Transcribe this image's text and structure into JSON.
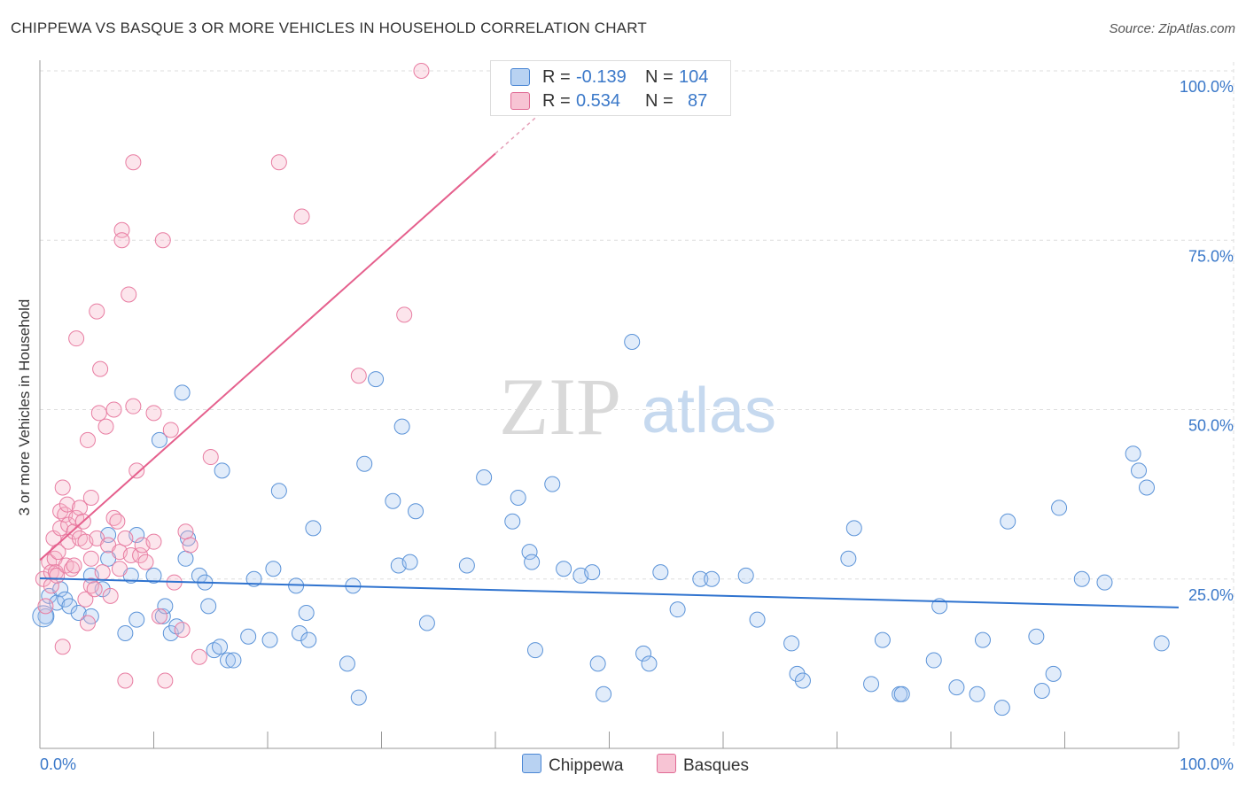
{
  "title": "CHIPPEWA VS BASQUE 3 OR MORE VEHICLES IN HOUSEHOLD CORRELATION CHART",
  "source": "Source: ZipAtlas.com",
  "watermark": {
    "zip": "ZIP",
    "atlas": "atlas"
  },
  "legend_stats": [
    {
      "r_label": "R =",
      "r_value": "-0.139",
      "n_label": "N =",
      "n_value": "104",
      "color": "#4a86d4",
      "fill": "#b8d2f2"
    },
    {
      "r_label": "R =",
      "r_value": "0.534",
      "n_label": "N =",
      "n_value": "87",
      "color": "#e06a94",
      "fill": "#f7bfd0"
    }
  ],
  "bottom_legend": [
    {
      "label": "Chippewa",
      "fill": "#b8d2f2",
      "stroke": "#4a86d4"
    },
    {
      "label": "Basques",
      "fill": "#f7c4d4",
      "stroke": "#e06a94"
    }
  ],
  "chart_data": {
    "type": "scatter",
    "title": "CHIPPEWA VS BASQUE 3 OR MORE VEHICLES IN HOUSEHOLD CORRELATION CHART",
    "ylabel": "3 or more Vehicles in Household",
    "xlabel": "",
    "xlim": [
      0,
      100
    ],
    "ylim": [
      0,
      100
    ],
    "x_tick_labels": [
      "0.0%",
      "100.0%"
    ],
    "y_tick_labels": [
      "25.0%",
      "50.0%",
      "75.0%",
      "100.0%"
    ],
    "grid": true,
    "legend_position": "top-center",
    "series": [
      {
        "name": "Chippewa",
        "color": "#4a86d4",
        "trend": {
          "x": [
            0,
            100
          ],
          "y": [
            25.1,
            20.8
          ]
        },
        "points": [
          [
            0.5,
            19.5
          ],
          [
            0.8,
            22.5
          ],
          [
            1.5,
            21.5
          ],
          [
            1.8,
            23.5
          ],
          [
            2.2,
            22.0
          ],
          [
            2.6,
            21.0
          ],
          [
            3.4,
            20.0
          ],
          [
            4.5,
            25.5
          ],
          [
            4.5,
            19.5
          ],
          [
            5.5,
            23.5
          ],
          [
            6.0,
            31.5
          ],
          [
            6.0,
            28.0
          ],
          [
            7.5,
            17.0
          ],
          [
            8.0,
            25.5
          ],
          [
            8.5,
            31.5
          ],
          [
            8.5,
            19.0
          ],
          [
            10.0,
            25.5
          ],
          [
            10.5,
            45.5
          ],
          [
            10.8,
            19.5
          ],
          [
            11.0,
            21.0
          ],
          [
            11.5,
            17.0
          ],
          [
            12.0,
            18.0
          ],
          [
            12.5,
            52.5
          ],
          [
            12.8,
            28.0
          ],
          [
            13.0,
            31.0
          ],
          [
            14.0,
            25.5
          ],
          [
            14.5,
            24.5
          ],
          [
            14.8,
            21.0
          ],
          [
            15.3,
            14.5
          ],
          [
            15.8,
            15.0
          ],
          [
            16.0,
            41.0
          ],
          [
            16.5,
            13.0
          ],
          [
            17.0,
            13.0
          ],
          [
            18.3,
            16.5
          ],
          [
            18.8,
            25.0
          ],
          [
            20.2,
            16.0
          ],
          [
            20.5,
            26.5
          ],
          [
            21.0,
            38.0
          ],
          [
            22.5,
            24.0
          ],
          [
            22.8,
            17.0
          ],
          [
            23.4,
            20.0
          ],
          [
            23.6,
            16.0
          ],
          [
            24.0,
            32.5
          ],
          [
            27.0,
            12.5
          ],
          [
            27.5,
            24.0
          ],
          [
            28.0,
            7.5
          ],
          [
            28.5,
            42.0
          ],
          [
            29.5,
            54.5
          ],
          [
            31.0,
            36.5
          ],
          [
            31.5,
            27.0
          ],
          [
            31.8,
            47.5
          ],
          [
            32.5,
            27.5
          ],
          [
            33.0,
            35.0
          ],
          [
            34.0,
            18.5
          ],
          [
            37.5,
            27.0
          ],
          [
            39.0,
            40.0
          ],
          [
            41.5,
            33.5
          ],
          [
            42.0,
            37.0
          ],
          [
            43.0,
            29.0
          ],
          [
            43.2,
            27.5
          ],
          [
            43.5,
            14.5
          ],
          [
            45.0,
            39.0
          ],
          [
            46.0,
            26.5
          ],
          [
            47.5,
            25.5
          ],
          [
            48.5,
            26.0
          ],
          [
            49.0,
            12.5
          ],
          [
            49.5,
            8.0
          ],
          [
            52.0,
            60.0
          ],
          [
            53.0,
            14.0
          ],
          [
            53.5,
            12.5
          ],
          [
            54.5,
            26.0
          ],
          [
            56.0,
            20.5
          ],
          [
            58.0,
            25.0
          ],
          [
            59.0,
            25.0
          ],
          [
            62.0,
            25.5
          ],
          [
            63.0,
            19.0
          ],
          [
            66.0,
            15.5
          ],
          [
            66.5,
            11.0
          ],
          [
            67.0,
            10.0
          ],
          [
            71.0,
            28.0
          ],
          [
            71.5,
            32.5
          ],
          [
            73.0,
            9.5
          ],
          [
            74.0,
            16.0
          ],
          [
            75.5,
            8.0
          ],
          [
            75.7,
            8.0
          ],
          [
            78.5,
            13.0
          ],
          [
            79.0,
            21.0
          ],
          [
            80.5,
            9.0
          ],
          [
            82.3,
            8.0
          ],
          [
            82.8,
            16.0
          ],
          [
            84.5,
            6.0
          ],
          [
            85.0,
            33.5
          ],
          [
            87.5,
            16.5
          ],
          [
            88.0,
            8.5
          ],
          [
            89.0,
            11.0
          ],
          [
            89.5,
            35.5
          ],
          [
            91.5,
            25.0
          ],
          [
            93.5,
            24.5
          ],
          [
            96.0,
            43.5
          ],
          [
            96.5,
            41.0
          ],
          [
            97.2,
            38.5
          ],
          [
            98.5,
            15.5
          ]
        ]
      },
      {
        "name": "Basques",
        "color": "#e06a94",
        "trend": {
          "x": [
            0,
            40
          ],
          "y": [
            27.8,
            87.8
          ]
        },
        "trend_dashed": {
          "x": [
            40,
            44
          ],
          "y": [
            87.8,
            93.8
          ]
        },
        "points": [
          [
            0.3,
            25.0
          ],
          [
            0.5,
            21.0
          ],
          [
            0.8,
            27.5
          ],
          [
            1.0,
            26.0
          ],
          [
            1.0,
            24.0
          ],
          [
            1.2,
            31.0
          ],
          [
            1.3,
            28.0
          ],
          [
            1.4,
            26.0
          ],
          [
            1.5,
            25.5
          ],
          [
            1.6,
            29.0
          ],
          [
            1.8,
            32.5
          ],
          [
            1.8,
            35.0
          ],
          [
            2.0,
            15.0
          ],
          [
            2.0,
            38.5
          ],
          [
            2.2,
            34.5
          ],
          [
            2.3,
            27.0
          ],
          [
            2.4,
            36.0
          ],
          [
            2.5,
            33.0
          ],
          [
            2.5,
            30.5
          ],
          [
            2.8,
            26.5
          ],
          [
            3.0,
            32.0
          ],
          [
            3.0,
            27.0
          ],
          [
            3.2,
            60.5
          ],
          [
            3.2,
            34.0
          ],
          [
            3.5,
            35.5
          ],
          [
            3.5,
            31.0
          ],
          [
            3.8,
            33.5
          ],
          [
            4.0,
            22.0
          ],
          [
            4.0,
            30.5
          ],
          [
            4.2,
            18.5
          ],
          [
            4.2,
            45.5
          ],
          [
            4.5,
            37.0
          ],
          [
            4.5,
            24.0
          ],
          [
            4.5,
            28.0
          ],
          [
            4.8,
            23.5
          ],
          [
            5.0,
            64.5
          ],
          [
            5.0,
            31.0
          ],
          [
            5.2,
            49.5
          ],
          [
            5.3,
            56.0
          ],
          [
            5.5,
            26.0
          ],
          [
            5.8,
            47.5
          ],
          [
            6.0,
            30.0
          ],
          [
            6.2,
            22.5
          ],
          [
            6.5,
            50.0
          ],
          [
            6.5,
            34.0
          ],
          [
            6.8,
            33.5
          ],
          [
            7.0,
            29.0
          ],
          [
            7.0,
            26.5
          ],
          [
            7.2,
            76.5
          ],
          [
            7.2,
            75.0
          ],
          [
            7.5,
            10.0
          ],
          [
            7.5,
            31.0
          ],
          [
            7.8,
            67.0
          ],
          [
            8.0,
            28.5
          ],
          [
            8.2,
            50.5
          ],
          [
            8.2,
            86.5
          ],
          [
            8.5,
            41.0
          ],
          [
            8.8,
            28.5
          ],
          [
            9.0,
            30.0
          ],
          [
            9.3,
            27.5
          ],
          [
            10.0,
            30.5
          ],
          [
            10.0,
            49.5
          ],
          [
            10.5,
            19.5
          ],
          [
            10.8,
            75.0
          ],
          [
            11.0,
            10.0
          ],
          [
            11.5,
            47.0
          ],
          [
            11.8,
            24.5
          ],
          [
            12.5,
            17.5
          ],
          [
            12.8,
            32.0
          ],
          [
            13.2,
            30.0
          ],
          [
            14.0,
            13.5
          ],
          [
            15.0,
            43.0
          ],
          [
            21.0,
            86.5
          ],
          [
            23.0,
            78.5
          ],
          [
            28.0,
            55.0
          ],
          [
            32.0,
            64.0
          ],
          [
            33.5,
            100.0
          ]
        ]
      }
    ]
  }
}
